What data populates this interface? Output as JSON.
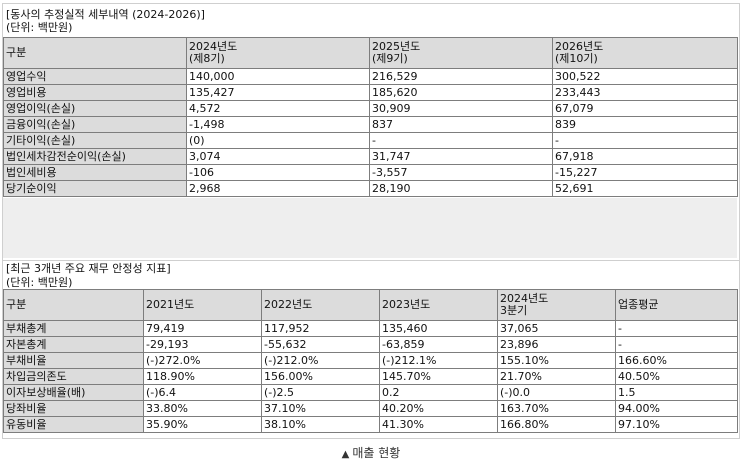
{
  "table1": {
    "title": "[동사의 추정실적 세부내역 (2024-2026)]",
    "unit": "(단위: 백만원)",
    "columns": [
      {
        "line1": "구분",
        "line2": ""
      },
      {
        "line1": "2024년도",
        "line2": "(제8기)"
      },
      {
        "line1": "2025년도",
        "line2": "(제9기)"
      },
      {
        "line1": "2026년도",
        "line2": "(제10기)"
      }
    ],
    "rows": [
      [
        "영업수익",
        "140,000",
        "216,529",
        "300,522"
      ],
      [
        "영업비용",
        "135,427",
        "185,620",
        "233,443"
      ],
      [
        "영업이익(손실)",
        "4,572",
        "30,909",
        "67,079"
      ],
      [
        "금융이익(손실)",
        "-1,498",
        " 837",
        " 839"
      ],
      [
        "기타이익(손실)",
        " (0)",
        "-",
        "-"
      ],
      [
        "법인세차감전순이익(손실)",
        "3,074",
        "31,747",
        "67,918"
      ],
      [
        "법인세비용",
        "-106",
        "-3,557",
        "-15,227"
      ],
      [
        "당기순이익",
        "2,968",
        "28,190",
        "52,691"
      ]
    ]
  },
  "table2": {
    "title": "[최근 3개년 주요 재무 안정성 지표]",
    "unit": "(단위: 백만원)",
    "columns": [
      {
        "line1": "구분",
        "line2": ""
      },
      {
        "line1": "2021년도",
        "line2": ""
      },
      {
        "line1": "2022년도",
        "line2": ""
      },
      {
        "line1": "2023년도",
        "line2": ""
      },
      {
        "line1": "2024년도",
        "line2": "3분기"
      },
      {
        "line1": "업종평균",
        "line2": ""
      }
    ],
    "rows": [
      [
        "부채총계",
        "79,419",
        "117,952",
        "135,460",
        "37,065",
        "-"
      ],
      [
        "자본총계",
        "-29,193",
        "-55,632",
        "-63,859",
        "23,896",
        "-"
      ],
      [
        "부채비율",
        "(-)272.0%",
        "(-)212.0%",
        "(-)212.1%",
        "155.10%",
        "166.60%"
      ],
      [
        "차입금의존도",
        "118.90%",
        "156.00%",
        "145.70%",
        "21.70%",
        "40.50%"
      ],
      [
        "이자보상배율(배)",
        "(-)6.4",
        "(-)2.5",
        "0.2",
        "(-)0.0",
        "1.5"
      ],
      [
        "당좌비율",
        "33.80%",
        "37.10%",
        "40.20%",
        "163.70%",
        "94.00%"
      ],
      [
        "유동비율",
        "35.90%",
        "38.10%",
        "41.30%",
        "166.80%",
        "97.10%"
      ]
    ]
  },
  "caption": {
    "arrow_icon": "triangle-up",
    "text": "매출 현황"
  }
}
